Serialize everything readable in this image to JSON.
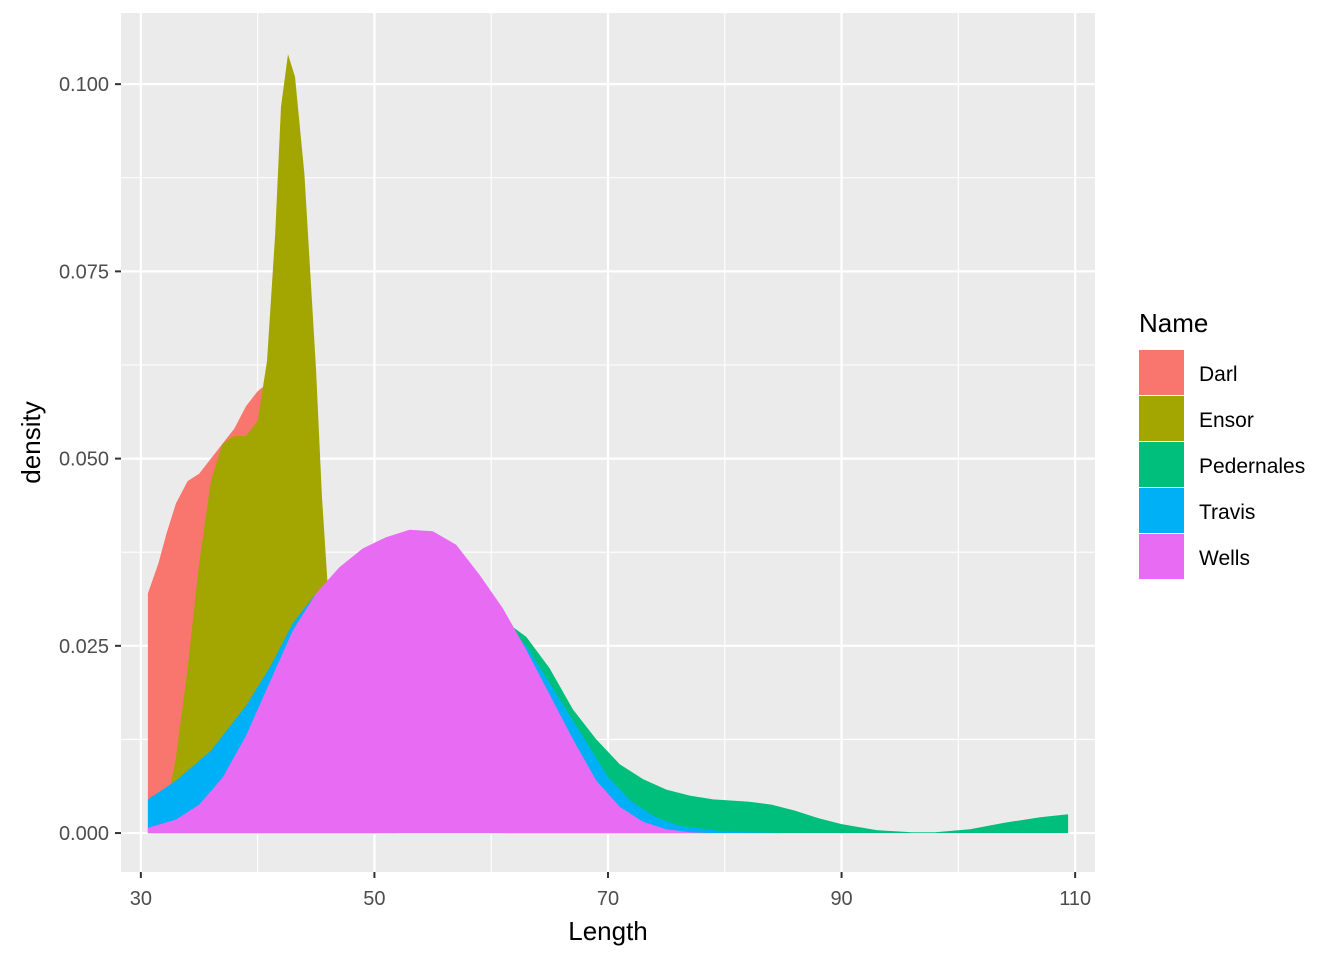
{
  "chart_data": {
    "type": "area",
    "subtype": "density",
    "xlabel": "Length",
    "ylabel": "density",
    "xlim": [
      28.3,
      111.7
    ],
    "ylim": [
      -0.0052,
      0.1095
    ],
    "x_ticks": [
      30,
      50,
      70,
      90,
      110
    ],
    "x_tick_labels": [
      "30",
      "50",
      "70",
      "90",
      "110"
    ],
    "y_ticks": [
      0.0,
      0.025,
      0.05,
      0.075,
      0.1
    ],
    "y_tick_labels": [
      "0.000",
      "0.025",
      "0.050",
      "0.075",
      "0.100"
    ],
    "grid": true,
    "background": "#ebebeb",
    "legend": {
      "title": "Name",
      "placement": "right"
    },
    "series": [
      {
        "name": "Darl",
        "color": "#F8766D",
        "points": [
          [
            30.6,
            0.0
          ],
          [
            30.6,
            0.032
          ],
          [
            31.5,
            0.036
          ],
          [
            32.2,
            0.04
          ],
          [
            33.0,
            0.044
          ],
          [
            34.0,
            0.047
          ],
          [
            35.0,
            0.048
          ],
          [
            36.0,
            0.05
          ],
          [
            37.0,
            0.052
          ],
          [
            38.0,
            0.054
          ],
          [
            39.0,
            0.057
          ],
          [
            40.0,
            0.059
          ],
          [
            40.8,
            0.06
          ],
          [
            41.2,
            0.057
          ],
          [
            42.0,
            0.05
          ],
          [
            43.0,
            0.042
          ],
          [
            44.0,
            0.035
          ],
          [
            45.0,
            0.026
          ],
          [
            46.0,
            0.016
          ],
          [
            47.0,
            0.009
          ],
          [
            48.0,
            0.005
          ],
          [
            49.0,
            0.002
          ],
          [
            50.0,
            0.0
          ]
        ]
      },
      {
        "name": "Ensor",
        "color": "#A3A500",
        "points": [
          [
            30.6,
            0.0
          ],
          [
            32.0,
            0.002
          ],
          [
            33.0,
            0.01
          ],
          [
            34.0,
            0.022
          ],
          [
            35.0,
            0.036
          ],
          [
            36.0,
            0.047
          ],
          [
            37.0,
            0.052
          ],
          [
            38.0,
            0.053
          ],
          [
            39.0,
            0.053
          ],
          [
            40.0,
            0.055
          ],
          [
            40.8,
            0.063
          ],
          [
            41.5,
            0.08
          ],
          [
            42.0,
            0.097
          ],
          [
            42.6,
            0.104
          ],
          [
            43.2,
            0.101
          ],
          [
            44.0,
            0.088
          ],
          [
            45.0,
            0.062
          ],
          [
            45.5,
            0.045
          ],
          [
            46.0,
            0.033
          ],
          [
            47.0,
            0.02
          ],
          [
            48.0,
            0.011
          ],
          [
            50.0,
            0.003
          ],
          [
            52.0,
            0.0
          ]
        ]
      },
      {
        "name": "Pedernales",
        "color": "#00BF7D",
        "points": [
          [
            61.0,
            0.0
          ],
          [
            61.0,
            0.0285
          ],
          [
            63.0,
            0.0262
          ],
          [
            65.0,
            0.022
          ],
          [
            67.0,
            0.0165
          ],
          [
            69.0,
            0.0125
          ],
          [
            71.0,
            0.0092
          ],
          [
            73.0,
            0.0072
          ],
          [
            75.0,
            0.0058
          ],
          [
            77.0,
            0.005
          ],
          [
            79.0,
            0.0045
          ],
          [
            82.0,
            0.0042
          ],
          [
            84.0,
            0.0038
          ],
          [
            86.0,
            0.003
          ],
          [
            88.0,
            0.002
          ],
          [
            90.0,
            0.0012
          ],
          [
            93.0,
            0.0004
          ],
          [
            96.0,
            0.0001
          ],
          [
            98.0,
            0.0001
          ],
          [
            101.0,
            0.0005
          ],
          [
            104.0,
            0.0014
          ],
          [
            107.0,
            0.0021
          ],
          [
            109.4,
            0.0025
          ],
          [
            109.4,
            0.0
          ]
        ]
      },
      {
        "name": "Travis",
        "color": "#00B0F6",
        "points": [
          [
            30.6,
            0.0
          ],
          [
            30.6,
            0.0045
          ],
          [
            33.0,
            0.007
          ],
          [
            36.0,
            0.011
          ],
          [
            39.0,
            0.017
          ],
          [
            41.0,
            0.022
          ],
          [
            43.0,
            0.028
          ],
          [
            45.0,
            0.032
          ],
          [
            47.0,
            0.0343
          ],
          [
            48.0,
            0.0348
          ],
          [
            50.0,
            0.0356
          ],
          [
            53.0,
            0.0365
          ],
          [
            56.0,
            0.0345
          ],
          [
            60.0,
            0.03
          ],
          [
            63.0,
            0.025
          ],
          [
            66.0,
            0.0175
          ],
          [
            68.0,
            0.0125
          ],
          [
            70.0,
            0.0075
          ],
          [
            72.0,
            0.0042
          ],
          [
            74.0,
            0.0022
          ],
          [
            76.0,
            0.001
          ],
          [
            80.0,
            0.0002
          ],
          [
            85.0,
            0.0
          ]
        ]
      },
      {
        "name": "Wells",
        "color": "#E76BF3",
        "points": [
          [
            30.6,
            0.0
          ],
          [
            30.6,
            0.0007
          ],
          [
            33.0,
            0.0018
          ],
          [
            35.0,
            0.0038
          ],
          [
            37.0,
            0.0074
          ],
          [
            39.0,
            0.013
          ],
          [
            41.0,
            0.02
          ],
          [
            43.0,
            0.027
          ],
          [
            45.0,
            0.032
          ],
          [
            47.0,
            0.0355
          ],
          [
            49.0,
            0.038
          ],
          [
            51.0,
            0.0395
          ],
          [
            53.0,
            0.0405
          ],
          [
            55.0,
            0.0403
          ],
          [
            57.0,
            0.0385
          ],
          [
            59.0,
            0.0345
          ],
          [
            61.0,
            0.03
          ],
          [
            63.0,
            0.0245
          ],
          [
            65.0,
            0.0185
          ],
          [
            67.0,
            0.0125
          ],
          [
            69.0,
            0.007
          ],
          [
            71.0,
            0.0035
          ],
          [
            73.0,
            0.0015
          ],
          [
            75.0,
            0.0005
          ],
          [
            77.0,
            0.0001
          ],
          [
            79.0,
            0.0
          ]
        ]
      }
    ]
  }
}
